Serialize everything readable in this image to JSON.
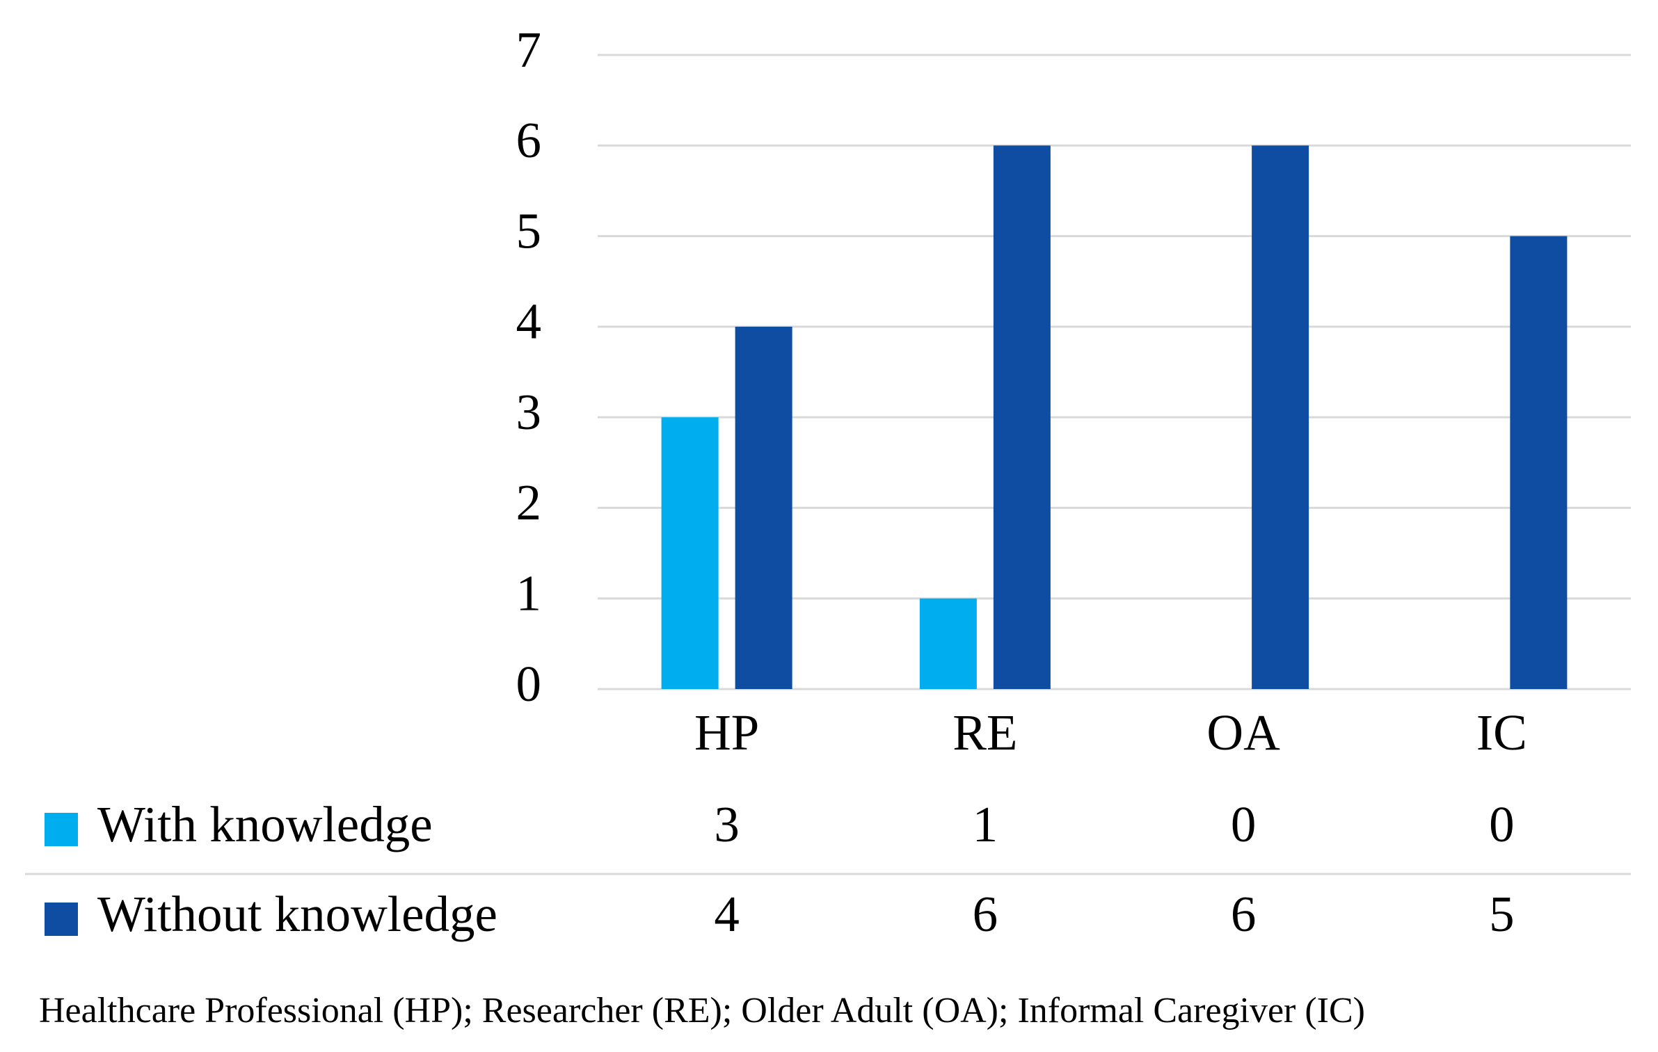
{
  "chart_data": {
    "type": "bar",
    "categories": [
      "HP",
      "RE",
      "OA",
      "IC"
    ],
    "series": [
      {
        "name": "With knowledge",
        "color": "#00aeef",
        "values": [
          3,
          1,
          0,
          0
        ]
      },
      {
        "name": "Without knowledge",
        "color": "#0f4da2",
        "values": [
          4,
          6,
          6,
          5
        ]
      }
    ],
    "ylim": [
      0,
      7
    ],
    "yticks": [
      0,
      1,
      2,
      3,
      4,
      5,
      6,
      7
    ],
    "grid": true,
    "note": "Healthcare Professional (HP); Researcher (RE); Older Adult (OA); Informal Caregiver (IC)"
  }
}
